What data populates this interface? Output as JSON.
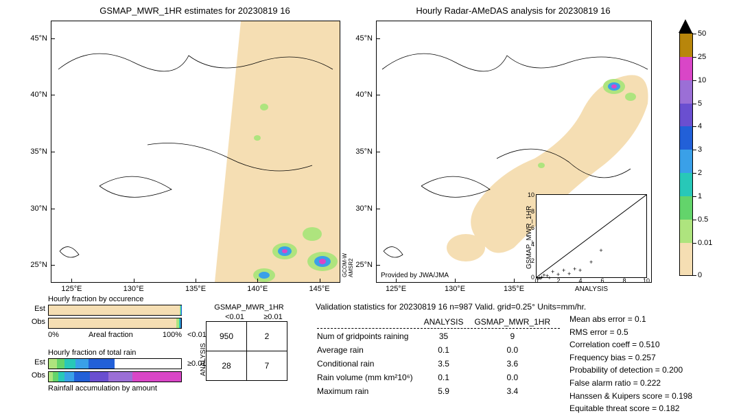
{
  "left_map": {
    "title": "GSMAP_MWR_1HR estimates for 20230819 16",
    "lat_ticks": [
      "25°N",
      "30°N",
      "35°N",
      "40°N",
      "45°N"
    ],
    "lon_ticks": [
      "125°E",
      "130°E",
      "135°E",
      "140°E",
      "145°E"
    ],
    "sat_label": "GCOM-W\nAMSR2"
  },
  "right_map": {
    "title": "Hourly Radar-AMeDAS analysis for 20230819 16",
    "lat_ticks": [
      "25°N",
      "30°N",
      "35°N",
      "40°N",
      "45°N"
    ],
    "lon_ticks": [
      "125°E",
      "130°E",
      "135°E"
    ],
    "provided": "Provided by JWA/JMA"
  },
  "colorbar": {
    "segments": [
      {
        "color": "#f5deb3",
        "h": 14
      },
      {
        "color": "#aee47e",
        "h": 10
      },
      {
        "color": "#63d46b",
        "h": 10
      },
      {
        "color": "#28c8b8",
        "h": 10
      },
      {
        "color": "#3aa0e8",
        "h": 10
      },
      {
        "color": "#2260d8",
        "h": 10
      },
      {
        "color": "#6a4fd0",
        "h": 10
      },
      {
        "color": "#9b6fd6",
        "h": 10
      },
      {
        "color": "#d946c7",
        "h": 10
      },
      {
        "color": "#b8860b",
        "h": 10
      }
    ],
    "ticks": [
      "0",
      "0.01",
      "0.5",
      "1",
      "2",
      "3",
      "4",
      "5",
      "10",
      "25",
      "50"
    ],
    "arrow_color": "#000000"
  },
  "inset": {
    "xlabel": "ANALYSIS",
    "ylabel": "GSMAP_MWR_1HR",
    "xticks": [
      "0",
      "2",
      "4",
      "6",
      "8",
      "10"
    ],
    "yticks": [
      "0",
      "2",
      "4",
      "6",
      "8",
      "10"
    ],
    "points": [
      {
        "x": 0.1,
        "y": 0.0
      },
      {
        "x": 0.2,
        "y": 0.0
      },
      {
        "x": 0.3,
        "y": 0.1
      },
      {
        "x": 0.4,
        "y": 0.0
      },
      {
        "x": 0.5,
        "y": 0.2
      },
      {
        "x": 0.7,
        "y": 0.4
      },
      {
        "x": 1.0,
        "y": 0.3
      },
      {
        "x": 1.2,
        "y": 0.1
      },
      {
        "x": 1.5,
        "y": 0.8
      },
      {
        "x": 2.0,
        "y": 0.5
      },
      {
        "x": 2.5,
        "y": 1.0
      },
      {
        "x": 3.0,
        "y": 0.6
      },
      {
        "x": 3.5,
        "y": 1.2
      },
      {
        "x": 4.0,
        "y": 1.0
      },
      {
        "x": 5.0,
        "y": 2.0
      },
      {
        "x": 5.9,
        "y": 3.4
      }
    ]
  },
  "occurence": {
    "title": "Hourly fraction by occurence",
    "xlabel": "Areal fraction",
    "xmin": "0%",
    "xmax": "100%",
    "rows": [
      {
        "label": "Est",
        "white": 0.991,
        "color1": "#aee47e",
        "f1": 0.004,
        "color2": "#28c8b8",
        "f2": 0.003,
        "color3": "#2260d8",
        "f3": 0.002
      },
      {
        "label": "Obs",
        "white": 0.965,
        "color1": "#aee47e",
        "f1": 0.02,
        "color2": "#28c8b8",
        "f2": 0.01,
        "color3": "#2260d8",
        "f3": 0.005
      }
    ]
  },
  "totalrain": {
    "title": "Hourly fraction of total rain",
    "footer": "Rainfall accumulation by amount",
    "rows": [
      {
        "label": "Est",
        "segs": [
          {
            "c": "#aee47e",
            "f": 0.06
          },
          {
            "c": "#63d46b",
            "f": 0.06
          },
          {
            "c": "#28c8b8",
            "f": 0.08
          },
          {
            "c": "#3aa0e8",
            "f": 0.1
          },
          {
            "c": "#2260d8",
            "f": 0.2
          },
          {
            "c": "#ffffff",
            "f": 0.5
          }
        ]
      },
      {
        "label": "Obs",
        "segs": [
          {
            "c": "#aee47e",
            "f": 0.03
          },
          {
            "c": "#63d46b",
            "f": 0.04
          },
          {
            "c": "#28c8b8",
            "f": 0.05
          },
          {
            "c": "#3aa0e8",
            "f": 0.07
          },
          {
            "c": "#2260d8",
            "f": 0.12
          },
          {
            "c": "#6a4fd0",
            "f": 0.14
          },
          {
            "c": "#9b6fd6",
            "f": 0.18
          },
          {
            "c": "#d946c7",
            "f": 0.37
          }
        ]
      }
    ]
  },
  "contingency": {
    "title": "GSMAP_MWR_1HR",
    "side": "ANALYSIS",
    "col_headers": [
      "<0.01",
      "≥0.01"
    ],
    "row_headers": [
      "<0.01",
      "≥0.01"
    ],
    "cells": [
      [
        "950",
        "2"
      ],
      [
        "28",
        "7"
      ]
    ]
  },
  "validation": {
    "title": "Validation statistics for 20230819 16  n=987 Valid. grid=0.25° Units=mm/hr.",
    "col_headers": [
      "",
      "ANALYSIS",
      "GSMAP_MWR_1HR"
    ],
    "rows": [
      [
        "Num of gridpoints raining",
        "35",
        "9"
      ],
      [
        "Average rain",
        "0.1",
        "0.0"
      ],
      [
        "Conditional rain",
        "3.5",
        "3.6"
      ],
      [
        "Rain volume (mm km²10⁶)",
        "0.1",
        "0.0"
      ],
      [
        "Maximum rain",
        "5.9",
        "3.4"
      ]
    ]
  },
  "scores": [
    {
      "label": "Mean abs error =",
      "val": "0.1"
    },
    {
      "label": "RMS error =",
      "val": "0.5"
    },
    {
      "label": "Correlation coeff =",
      "val": "0.510"
    },
    {
      "label": "Frequency bias =",
      "val": "0.257"
    },
    {
      "label": "Probability of detection =",
      "val": "0.200"
    },
    {
      "label": "False alarm ratio =",
      "val": "0.222"
    },
    {
      "label": "Hanssen & Kuipers score =",
      "val": "0.198"
    },
    {
      "label": "Equitable threat score =",
      "val": "0.182"
    }
  ]
}
